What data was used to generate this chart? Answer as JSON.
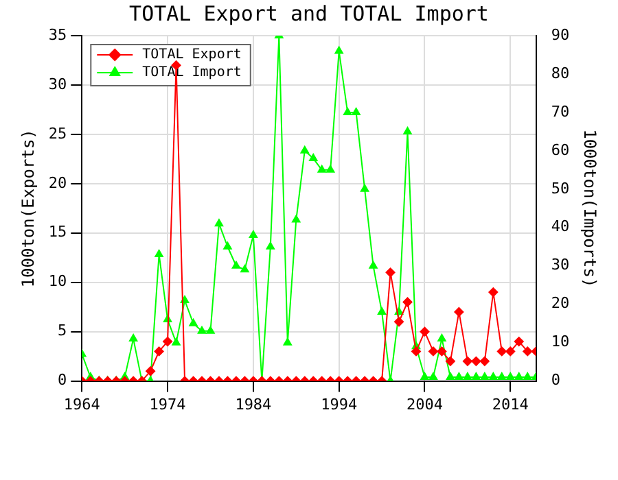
{
  "chart_data": {
    "type": "line",
    "title": "TOTAL Export and TOTAL Import",
    "ylabel": "1000ton(Exports)",
    "y2label": "1000ton(Imports)",
    "x": [
      1964,
      1965,
      1966,
      1967,
      1968,
      1969,
      1970,
      1971,
      1972,
      1973,
      1974,
      1975,
      1976,
      1977,
      1978,
      1979,
      1980,
      1981,
      1982,
      1983,
      1984,
      1985,
      1986,
      1987,
      1988,
      1989,
      1990,
      1991,
      1992,
      1993,
      1994,
      1995,
      1996,
      1997,
      1998,
      1999,
      2000,
      2001,
      2002,
      2003,
      2004,
      2005,
      2006,
      2007,
      2008,
      2009,
      2010,
      2011,
      2012,
      2013,
      2014,
      2015,
      2016,
      2017
    ],
    "series": [
      {
        "name": "TOTAL Export",
        "color": "#ff0000",
        "marker": "diamond",
        "axis": "y",
        "values": [
          0,
          0,
          0,
          0,
          0,
          0,
          0,
          0,
          1,
          3,
          4,
          32,
          0,
          0,
          0,
          0,
          0,
          0,
          0,
          0,
          0,
          0,
          0,
          0,
          0,
          0,
          0,
          0,
          0,
          0,
          0,
          0,
          0,
          0,
          0,
          0,
          11,
          6,
          8,
          3,
          5,
          3,
          3,
          2,
          7,
          2,
          2,
          2,
          9,
          3,
          3,
          4,
          3,
          3
        ]
      },
      {
        "name": "TOTAL Import",
        "color": "#00ff00",
        "marker": "triangle",
        "axis": "y2",
        "values": [
          7,
          1,
          0,
          0,
          0,
          1,
          11,
          0,
          0,
          33,
          16,
          10,
          21,
          15,
          13,
          13,
          41,
          35,
          30,
          29,
          38,
          0,
          35,
          90,
          10,
          42,
          60,
          58,
          55,
          55,
          86,
          70,
          70,
          50,
          30,
          18,
          0,
          18,
          65,
          9,
          1,
          1,
          11,
          1,
          1,
          1,
          1,
          1,
          1,
          1,
          1,
          1,
          1,
          1
        ]
      }
    ],
    "xlim": [
      1964,
      2017
    ],
    "xticks": [
      1964,
      1974,
      1984,
      1994,
      2004,
      2014
    ],
    "ylim": [
      0,
      35
    ],
    "yticks": [
      0,
      5,
      10,
      15,
      20,
      25,
      30,
      35
    ],
    "y2lim": [
      0,
      90
    ],
    "y2ticks": [
      0,
      10,
      20,
      30,
      40,
      50,
      60,
      70,
      80,
      90
    ],
    "grid": true,
    "legend": "top left",
    "line_style": "solid"
  }
}
